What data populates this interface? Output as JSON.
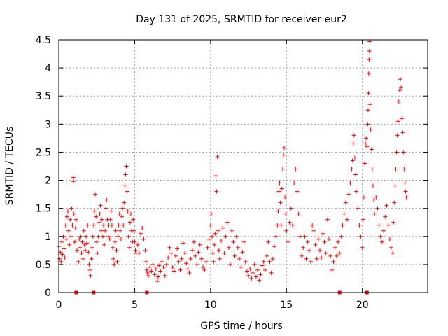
{
  "chart_data": {
    "type": "scatter",
    "title": "Day 131 of 2025, SRMTID for receiver eur2",
    "xlabel": "GPS time / hours",
    "ylabel": "SRMTID / TECUs",
    "xlim": [
      0,
      24.3
    ],
    "ylim": [
      0,
      4.5
    ],
    "xticks": [
      0,
      5,
      10,
      15,
      20
    ],
    "yticks": [
      0,
      0.5,
      1,
      1.5,
      2,
      2.5,
      3,
      3.5,
      4,
      4.5
    ],
    "grid": true,
    "marker": "+",
    "color": "#ff0000",
    "series": [
      {
        "name": "SRMTID",
        "points": [
          [
            0.0,
            0.82
          ],
          [
            0.05,
            0.6
          ],
          [
            0.1,
            0.72
          ],
          [
            0.15,
            0.55
          ],
          [
            0.2,
            0.9
          ],
          [
            0.25,
            0.68
          ],
          [
            0.3,
            1.0
          ],
          [
            0.35,
            0.78
          ],
          [
            0.4,
            0.62
          ],
          [
            0.45,
            1.2
          ],
          [
            0.5,
            0.95
          ],
          [
            0.55,
            1.35
          ],
          [
            0.6,
            1.45
          ],
          [
            0.65,
            1.1
          ],
          [
            0.7,
            0.85
          ],
          [
            0.75,
            1.3
          ],
          [
            0.8,
            1.0
          ],
          [
            0.85,
            1.5
          ],
          [
            0.9,
            1.2
          ],
          [
            0.95,
            2.05
          ],
          [
            0.97,
            1.98
          ],
          [
            1.0,
            1.4
          ],
          [
            1.05,
            0.9
          ],
          [
            1.1,
            1.15
          ],
          [
            1.15,
            1.3
          ],
          [
            1.2,
            0.75
          ],
          [
            1.3,
            0.55
          ],
          [
            1.35,
            0.95
          ],
          [
            1.4,
            0.8
          ],
          [
            1.45,
            1.0
          ],
          [
            1.5,
            0.7
          ],
          [
            1.55,
            0.9
          ],
          [
            1.6,
            0.6
          ],
          [
            1.65,
            1.1
          ],
          [
            1.7,
            0.85
          ],
          [
            1.75,
            0.75
          ],
          [
            1.8,
            1.0
          ],
          [
            1.85,
            0.88
          ],
          [
            1.9,
            1.2
          ],
          [
            1.95,
            0.72
          ],
          [
            2.0,
            0.5
          ],
          [
            2.05,
            0.4
          ],
          [
            2.1,
            0.3
          ],
          [
            2.15,
            0.6
          ],
          [
            2.2,
            0.8
          ],
          [
            2.25,
            1.0
          ],
          [
            2.3,
            1.2
          ],
          [
            2.35,
            1.45
          ],
          [
            2.4,
            1.75
          ],
          [
            2.45,
            1.35
          ],
          [
            2.5,
            0.9
          ],
          [
            2.55,
            0.7
          ],
          [
            2.6,
            1.0
          ],
          [
            2.65,
            1.25
          ],
          [
            2.7,
            1.4
          ],
          [
            2.75,
            1.55
          ],
          [
            2.8,
            1.1
          ],
          [
            2.85,
            1.3
          ],
          [
            2.9,
            1.0
          ],
          [
            2.95,
            1.2
          ],
          [
            3.0,
            0.85
          ],
          [
            3.05,
            1.1
          ],
          [
            3.1,
            1.5
          ],
          [
            3.15,
            1.65
          ],
          [
            3.2,
            1.3
          ],
          [
            3.25,
            1.0
          ],
          [
            3.3,
            1.2
          ],
          [
            3.35,
            0.95
          ],
          [
            3.4,
            1.3
          ],
          [
            3.45,
            1.45
          ],
          [
            3.5,
            1.2
          ],
          [
            3.55,
            0.8
          ],
          [
            3.6,
            0.6
          ],
          [
            3.65,
            0.5
          ],
          [
            3.7,
            0.9
          ],
          [
            3.75,
            1.1
          ],
          [
            3.8,
            0.75
          ],
          [
            3.85,
            0.55
          ],
          [
            3.9,
            1.0
          ],
          [
            3.95,
            1.2
          ],
          [
            4.0,
            1.4
          ],
          [
            4.05,
            1.1
          ],
          [
            4.1,
            0.95
          ],
          [
            4.15,
            1.35
          ],
          [
            4.2,
            1.5
          ],
          [
            4.25,
            1.2
          ],
          [
            4.3,
            1.6
          ],
          [
            4.35,
            1.9
          ],
          [
            4.4,
            2.1
          ],
          [
            4.45,
            2.25
          ],
          [
            4.5,
            1.8
          ],
          [
            4.55,
            1.45
          ],
          [
            4.6,
            1.0
          ],
          [
            4.65,
            0.8
          ],
          [
            4.7,
            1.25
          ],
          [
            4.75,
            1.4
          ],
          [
            4.8,
            1.1
          ],
          [
            4.85,
            0.9
          ],
          [
            4.9,
            1.3
          ],
          [
            4.95,
            1.1
          ],
          [
            5.0,
            0.9
          ],
          [
            5.05,
            0.75
          ],
          [
            5.1,
            0.7
          ],
          [
            5.2,
            0.85
          ],
          [
            5.3,
            0.7
          ],
          [
            5.4,
            1.05
          ],
          [
            5.5,
            1.15
          ],
          [
            5.6,
            0.95
          ],
          [
            5.7,
            0.75
          ],
          [
            5.75,
            0.55
          ],
          [
            5.8,
            0.4
          ],
          [
            5.85,
            0.35
          ],
          [
            5.9,
            0.3
          ],
          [
            6.0,
            0.45
          ],
          [
            6.1,
            0.38
          ],
          [
            6.2,
            0.5
          ],
          [
            6.3,
            0.32
          ],
          [
            6.4,
            0.42
          ],
          [
            6.5,
            0.2
          ],
          [
            6.55,
            0.28
          ],
          [
            6.6,
            0.48
          ],
          [
            6.7,
            0.38
          ],
          [
            6.8,
            0.55
          ],
          [
            6.9,
            0.45
          ],
          [
            7.0,
            0.3
          ],
          [
            7.1,
            0.5
          ],
          [
            7.2,
            0.62
          ],
          [
            7.3,
            0.8
          ],
          [
            7.4,
            0.7
          ],
          [
            7.5,
            0.45
          ],
          [
            7.6,
            0.38
          ],
          [
            7.7,
            0.65
          ],
          [
            7.8,
            0.78
          ],
          [
            7.9,
            0.55
          ],
          [
            8.0,
            0.4
          ],
          [
            8.1,
            0.6
          ],
          [
            8.2,
            0.88
          ],
          [
            8.3,
            0.7
          ],
          [
            8.4,
            0.52
          ],
          [
            8.5,
            0.42
          ],
          [
            8.6,
            0.35
          ],
          [
            8.7,
            0.6
          ],
          [
            8.8,
            0.75
          ],
          [
            8.9,
            0.9
          ],
          [
            9.0,
            0.65
          ],
          [
            9.1,
            0.5
          ],
          [
            9.2,
            0.72
          ],
          [
            9.3,
            0.85
          ],
          [
            9.4,
            0.6
          ],
          [
            9.5,
            0.45
          ],
          [
            9.6,
            0.4
          ],
          [
            9.7,
            0.55
          ],
          [
            9.8,
            0.8
          ],
          [
            9.9,
            0.95
          ],
          [
            10.0,
            1.2
          ],
          [
            10.05,
            1.4
          ],
          [
            10.1,
            1.0
          ],
          [
            10.15,
            0.7
          ],
          [
            10.2,
            0.55
          ],
          [
            10.25,
            0.85
          ],
          [
            10.3,
            1.05
          ],
          [
            10.35,
            2.08
          ],
          [
            10.4,
            1.8
          ],
          [
            10.45,
            2.42
          ],
          [
            10.5,
            1.1
          ],
          [
            10.55,
            0.75
          ],
          [
            10.6,
            0.6
          ],
          [
            10.7,
            0.92
          ],
          [
            10.8,
            1.15
          ],
          [
            10.9,
            0.7
          ],
          [
            11.0,
            1.0
          ],
          [
            11.1,
            1.25
          ],
          [
            11.2,
            0.8
          ],
          [
            11.3,
            0.5
          ],
          [
            11.4,
            1.1
          ],
          [
            11.5,
            0.9
          ],
          [
            11.6,
            0.65
          ],
          [
            11.7,
            1.0
          ],
          [
            11.8,
            0.8
          ],
          [
            11.9,
            0.6
          ],
          [
            12.0,
            0.45
          ],
          [
            12.1,
            0.72
          ],
          [
            12.2,
            0.9
          ],
          [
            12.3,
            0.55
          ],
          [
            12.4,
            0.38
          ],
          [
            12.5,
            0.3
          ],
          [
            12.6,
            0.42
          ],
          [
            12.7,
            0.25
          ],
          [
            12.8,
            0.35
          ],
          [
            12.9,
            0.5
          ],
          [
            13.0,
            0.28
          ],
          [
            13.1,
            0.4
          ],
          [
            13.2,
            0.22
          ],
          [
            13.3,
            0.32
          ],
          [
            13.4,
            0.48
          ],
          [
            13.5,
            0.55
          ],
          [
            13.6,
            0.4
          ],
          [
            13.7,
            0.65
          ],
          [
            13.8,
            0.9
          ],
          [
            13.9,
            0.55
          ],
          [
            14.0,
            0.35
          ],
          [
            14.1,
            0.6
          ],
          [
            14.2,
            0.82
          ],
          [
            14.3,
            1.0
          ],
          [
            14.4,
            1.2
          ],
          [
            14.45,
            1.45
          ],
          [
            14.5,
            1.8
          ],
          [
            14.55,
            1.95
          ],
          [
            14.6,
            1.6
          ],
          [
            14.65,
            1.2
          ],
          [
            14.7,
            1.85
          ],
          [
            14.75,
            2.2
          ],
          [
            14.8,
            2.45
          ],
          [
            14.85,
            2.58
          ],
          [
            14.9,
            1.7
          ],
          [
            14.95,
            1.4
          ],
          [
            15.0,
            1.1
          ],
          [
            15.1,
            0.9
          ],
          [
            15.2,
            1.25
          ],
          [
            15.3,
            1.5
          ],
          [
            15.4,
            1.2
          ],
          [
            15.5,
            1.95
          ],
          [
            15.6,
            2.2
          ],
          [
            15.7,
            1.8
          ],
          [
            15.8,
            1.4
          ],
          [
            15.9,
            1.0
          ],
          [
            16.0,
            0.65
          ],
          [
            16.1,
            0.8
          ],
          [
            16.2,
            1.0
          ],
          [
            16.3,
            0.6
          ],
          [
            16.4,
            0.9
          ],
          [
            16.5,
            0.75
          ],
          [
            16.6,
            0.55
          ],
          [
            16.7,
            1.2
          ],
          [
            16.8,
            1.1
          ],
          [
            16.9,
            0.85
          ],
          [
            17.0,
            0.6
          ],
          [
            17.1,
            0.95
          ],
          [
            17.2,
            0.75
          ],
          [
            17.3,
            0.62
          ],
          [
            17.4,
            1.05
          ],
          [
            17.5,
            0.9
          ],
          [
            17.6,
            0.7
          ],
          [
            17.7,
            1.3
          ],
          [
            17.8,
            0.95
          ],
          [
            17.9,
            0.65
          ],
          [
            18.0,
            0.4
          ],
          [
            18.1,
            0.55
          ],
          [
            18.2,
            0.8
          ],
          [
            18.3,
            0.65
          ],
          [
            18.4,
            0.9
          ],
          [
            18.5,
            0.7
          ],
          [
            18.6,
            1.0
          ],
          [
            18.7,
            1.2
          ],
          [
            18.8,
            1.4
          ],
          [
            18.9,
            1.6
          ],
          [
            19.0,
            1.3
          ],
          [
            19.1,
            1.75
          ],
          [
            19.2,
            1.95
          ],
          [
            19.3,
            2.2
          ],
          [
            19.35,
            2.35
          ],
          [
            19.4,
            2.65
          ],
          [
            19.45,
            2.8
          ],
          [
            19.5,
            2.4
          ],
          [
            19.55,
            2.1
          ],
          [
            19.6,
            1.8
          ],
          [
            19.7,
            1.5
          ],
          [
            19.8,
            1.2
          ],
          [
            19.9,
            1.0
          ],
          [
            20.0,
            0.8
          ],
          [
            20.05,
            1.3
          ],
          [
            20.1,
            1.7
          ],
          [
            20.15,
            2.3
          ],
          [
            20.2,
            2.65
          ],
          [
            20.25,
            2.75
          ],
          [
            20.3,
            2.6
          ],
          [
            20.35,
            3.0
          ],
          [
            20.38,
            3.25
          ],
          [
            20.4,
            3.55
          ],
          [
            20.42,
            3.9
          ],
          [
            20.44,
            4.15
          ],
          [
            20.46,
            4.3
          ],
          [
            20.48,
            4.47
          ],
          [
            20.5,
            3.35
          ],
          [
            20.55,
            2.9
          ],
          [
            20.6,
            2.55
          ],
          [
            20.65,
            2.2
          ],
          [
            20.7,
            1.9
          ],
          [
            20.75,
            1.65
          ],
          [
            20.8,
            1.4
          ],
          [
            20.9,
            1.7
          ],
          [
            21.0,
            1.5
          ],
          [
            21.1,
            1.2
          ],
          [
            21.2,
            1.0
          ],
          [
            21.3,
            0.9
          ],
          [
            21.4,
            1.1
          ],
          [
            21.5,
            1.35
          ],
          [
            21.6,
            1.55
          ],
          [
            21.7,
            1.2
          ],
          [
            21.8,
            0.95
          ],
          [
            21.9,
            0.8
          ],
          [
            22.0,
            0.7
          ],
          [
            22.05,
            1.25
          ],
          [
            22.1,
            1.6
          ],
          [
            22.15,
            1.9
          ],
          [
            22.2,
            2.2
          ],
          [
            22.25,
            2.5
          ],
          [
            22.3,
            2.8
          ],
          [
            22.35,
            3.05
          ],
          [
            22.4,
            3.4
          ],
          [
            22.45,
            3.6
          ],
          [
            22.5,
            3.8
          ],
          [
            22.55,
            3.65
          ],
          [
            22.6,
            3.1
          ],
          [
            22.65,
            2.85
          ],
          [
            22.7,
            2.5
          ],
          [
            22.75,
            2.2
          ],
          [
            22.8,
            1.95
          ],
          [
            22.85,
            1.8
          ],
          [
            22.9,
            1.7
          ]
        ]
      }
    ],
    "flag_markers_x": [
      1.15,
      2.3,
      5.8,
      18.5,
      20.3
    ],
    "flag_markers_y": 0
  }
}
